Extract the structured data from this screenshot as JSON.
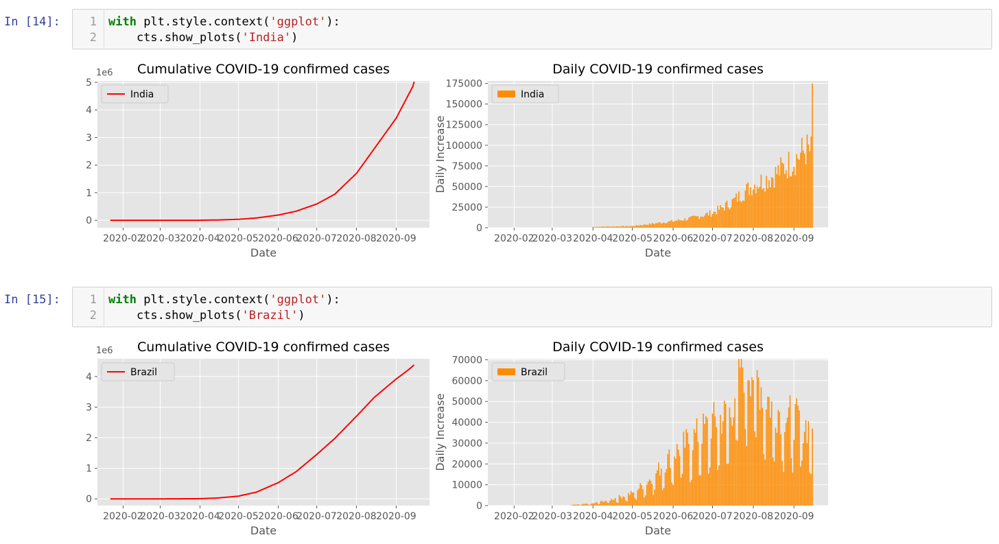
{
  "cells": [
    {
      "prompt": "In [14]:",
      "lines": [
        {
          "num": "1",
          "kw": "with",
          "pre": " plt.style.context(",
          "str": "'ggplot'",
          "post": "):"
        },
        {
          "num": "2",
          "kw": "",
          "pre": "    cts.show_plots(",
          "str": "'India'",
          "post": ")"
        }
      ]
    },
    {
      "prompt": "In [15]:",
      "lines": [
        {
          "num": "1",
          "kw": "with",
          "pre": " plt.style.context(",
          "str": "'ggplot'",
          "post": "):"
        },
        {
          "num": "2",
          "kw": "",
          "pre": "    cts.show_plots(",
          "str": "'Brazil'",
          "post": ")"
        }
      ]
    }
  ],
  "colors": {
    "cumulative": "#ff0000",
    "daily": "#ff8c00",
    "panel": "#e5e5e5",
    "grid": "#ffffff"
  },
  "chart_data": [
    {
      "type": "line",
      "title": "Cumulative COVID-19 confirmed cases",
      "xlabel": "Date",
      "ylabel": "",
      "offset_label": "1e6",
      "legend": "India",
      "legend_position": "upper-left",
      "x_ticks": [
        "2020-02",
        "2020-03",
        "2020-04",
        "2020-05",
        "2020-06",
        "2020-07",
        "2020-08",
        "2020-09"
      ],
      "y_ticks": [
        "0",
        "1",
        "2",
        "3",
        "4",
        "5"
      ],
      "xlim": [
        "2020-01-12",
        "2020-09-27"
      ],
      "ylim": [
        -0.27,
        5.05
      ],
      "series": [
        {
          "name": "India",
          "x": [
            "2020-01-22",
            "2020-03-01",
            "2020-04-01",
            "2020-04-15",
            "2020-05-01",
            "2020-05-15",
            "2020-06-01",
            "2020-06-15",
            "2020-07-01",
            "2020-07-15",
            "2020-08-01",
            "2020-08-15",
            "2020-09-01",
            "2020-09-10",
            "2020-09-14",
            "2020-09-15"
          ],
          "values": [
            0,
            0,
            0.002,
            0.012,
            0.035,
            0.085,
            0.19,
            0.33,
            0.59,
            0.94,
            1.7,
            2.6,
            3.7,
            4.5,
            4.85,
            5.02
          ]
        }
      ]
    },
    {
      "type": "bar",
      "title": "Daily COVID-19 confirmed cases",
      "xlabel": "Date",
      "ylabel": "Daily Increase",
      "legend": "India",
      "legend_position": "upper-left",
      "x_ticks": [
        "2020-02",
        "2020-03",
        "2020-04",
        "2020-05",
        "2020-06",
        "2020-07",
        "2020-08",
        "2020-09"
      ],
      "y_ticks": [
        "0",
        "25000",
        "50000",
        "75000",
        "100000",
        "125000",
        "150000",
        "175000"
      ],
      "xlim": [
        "2020-01-12",
        "2020-09-27"
      ],
      "ylim": [
        0,
        178000
      ],
      "series": [
        {
          "name": "India",
          "x": [
            "2020-04-01",
            "2020-05-01",
            "2020-06-01",
            "2020-06-15",
            "2020-07-01",
            "2020-07-15",
            "2020-08-01",
            "2020-08-15",
            "2020-09-01",
            "2020-09-10",
            "2020-09-14",
            "2020-09-15"
          ],
          "values": [
            1000,
            2000,
            8000,
            11500,
            18000,
            30000,
            52000,
            62000,
            82000,
            95000,
            92000,
            175000
          ]
        }
      ]
    },
    {
      "type": "line",
      "title": "Cumulative COVID-19 confirmed cases",
      "xlabel": "Date",
      "ylabel": "",
      "offset_label": "1e6",
      "legend": "Brazil",
      "legend_position": "upper-left",
      "x_ticks": [
        "2020-02",
        "2020-03",
        "2020-04",
        "2020-05",
        "2020-06",
        "2020-07",
        "2020-08",
        "2020-09"
      ],
      "y_ticks": [
        "0",
        "1",
        "2",
        "3",
        "4"
      ],
      "xlim": [
        "2020-01-12",
        "2020-09-27"
      ],
      "ylim": [
        -0.22,
        4.58
      ],
      "series": [
        {
          "name": "Brazil",
          "x": [
            "2020-01-22",
            "2020-03-01",
            "2020-04-01",
            "2020-04-15",
            "2020-05-01",
            "2020-05-15",
            "2020-06-01",
            "2020-06-15",
            "2020-07-01",
            "2020-07-15",
            "2020-08-01",
            "2020-08-15",
            "2020-09-01",
            "2020-09-10",
            "2020-09-15"
          ],
          "values": [
            0,
            0,
            0.006,
            0.028,
            0.09,
            0.22,
            0.53,
            0.89,
            1.45,
            1.97,
            2.7,
            3.32,
            3.92,
            4.2,
            4.38
          ]
        }
      ]
    },
    {
      "type": "bar",
      "title": "Daily COVID-19 confirmed cases",
      "xlabel": "Date",
      "ylabel": "Daily Increase",
      "legend": "Brazil",
      "legend_position": "upper-left",
      "x_ticks": [
        "2020-02",
        "2020-03",
        "2020-04",
        "2020-05",
        "2020-06",
        "2020-07",
        "2020-08",
        "2020-09"
      ],
      "y_ticks": [
        "0",
        "10000",
        "20000",
        "30000",
        "40000",
        "50000",
        "60000",
        "70000"
      ],
      "xlim": [
        "2020-01-12",
        "2020-09-27"
      ],
      "ylim": [
        0,
        70500
      ],
      "series": [
        {
          "name": "Brazil",
          "x": [
            "2020-03-15",
            "2020-04-01",
            "2020-04-15",
            "2020-05-01",
            "2020-05-15",
            "2020-06-01",
            "2020-06-15",
            "2020-07-01",
            "2020-07-15",
            "2020-07-22",
            "2020-07-29",
            "2020-08-15",
            "2020-09-01",
            "2020-09-15"
          ],
          "values": [
            300,
            1000,
            3000,
            6000,
            13000,
            25000,
            32000,
            40000,
            45000,
            68000,
            69000,
            48000,
            42000,
            37000
          ]
        }
      ]
    }
  ]
}
